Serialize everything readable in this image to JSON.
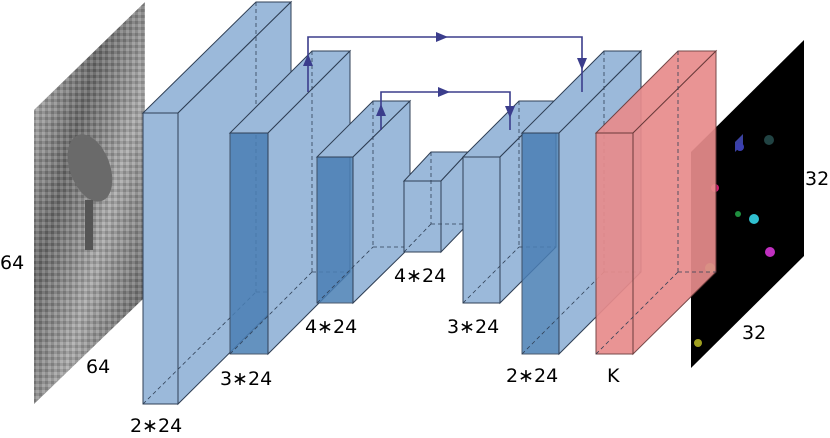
{
  "input_image": {
    "width_label": "64",
    "height_label": "64"
  },
  "encoder": {
    "block1_label": "2∗24",
    "block2_label": "3∗24",
    "block3_label": "4∗24"
  },
  "bottleneck": {
    "label": "4∗24"
  },
  "decoder": {
    "block3_label": "3∗24",
    "block2_label": "2∗24",
    "output_layer_label": "K"
  },
  "output_map": {
    "width_label": "32",
    "height_label": "32"
  },
  "colors": {
    "conv_block": "#9bb9da",
    "conv_block_inner": "#4a7fb5",
    "output_layer": "#e88c8c",
    "skip_connection": "#3b3d8c"
  }
}
